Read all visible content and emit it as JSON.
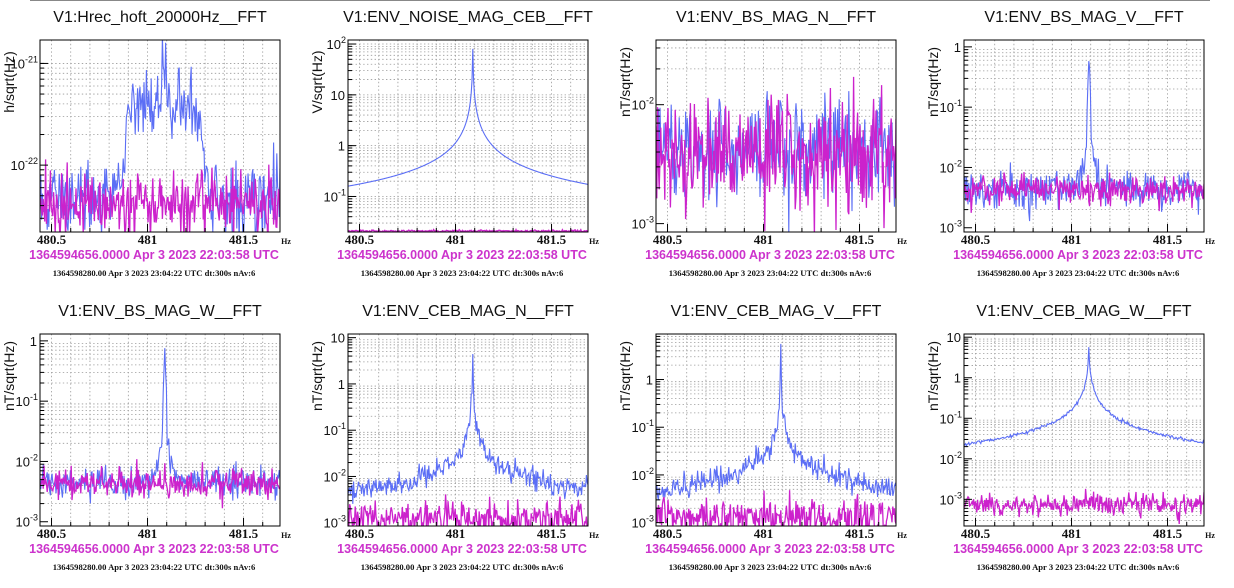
{
  "colors": {
    "reference": "#cc22cc",
    "current": "#5b6ef5",
    "ts1": "#cc33cc"
  },
  "chart_data": [
    {
      "type": "line",
      "title": "V1:Hrec_hoft_20000Hz__FFT",
      "ylabel": "h/sqrt(Hz)",
      "xunit": "Hz",
      "xlim": [
        480.44,
        481.69
      ],
      "xticks": [
        480.5,
        481,
        481.5
      ],
      "xtick_labels": [
        "480.5",
        "481",
        "481.5"
      ],
      "yscale": "log",
      "ylim": [
        2.2e-23,
        1.7e-21
      ],
      "yticks": [
        {
          "v": 1e-21,
          "m": "10",
          "e": "-21"
        },
        {
          "v": 1e-22,
          "m": "10",
          "e": "-22"
        }
      ],
      "ygrid": [
        2e-23,
        3e-23,
        4e-23,
        5e-23,
        6e-23,
        7e-23,
        8e-23,
        9e-23,
        2e-22,
        3e-22,
        4e-22,
        5e-22,
        6e-22,
        7e-22,
        8e-22,
        9e-22,
        1e-21
      ],
      "series": [
        {
          "role": "current",
          "base": 4.5e-23,
          "noise": 0.18,
          "peaks": [
            {
              "x": 481.09,
              "a": 7e-22,
              "w": 0.02
            },
            {
              "x": 481.0,
              "a": 3.2e-22,
              "w": 0.09
            },
            {
              "x": 481.18,
              "a": 3e-22,
              "w": 0.08
            },
            {
              "x": 480.93,
              "a": 1.6e-22,
              "w": 0.05
            },
            {
              "x": 481.25,
              "a": 1.4e-22,
              "w": 0.05
            }
          ]
        },
        {
          "role": "reference",
          "base": 4.3e-23,
          "noise": 0.15,
          "peaks": []
        }
      ],
      "timestamp_1": "1364594656.0000 Apr 3 2023 22:03:58 UTC",
      "timestamp_2": "1364598280.00 Apr 3 2023 23:04:22 UTC dt:300s nAv:6"
    },
    {
      "type": "line",
      "title": "V1:ENV_NOISE_MAG_CEB__FFT",
      "ylabel": "V/sqrt(Hz)",
      "xunit": "Hz",
      "xlim": [
        480.44,
        481.69
      ],
      "xticks": [
        480.5,
        481,
        481.5
      ],
      "xtick_labels": [
        "480.5",
        "481",
        "481.5"
      ],
      "yscale": "log",
      "ylim": [
        0.02,
        120
      ],
      "yticks": [
        {
          "v": 100,
          "m": "10",
          "e": "2"
        },
        {
          "v": 10,
          "m": "10",
          "e": ""
        },
        {
          "v": 1,
          "m": "1",
          "e": ""
        },
        {
          "v": 0.1,
          "m": "10",
          "e": "-1"
        }
      ],
      "ygrid": [
        0.03,
        0.04,
        0.05,
        0.06,
        0.07,
        0.08,
        0.09,
        0.1,
        0.2,
        0.3,
        0.4,
        0.5,
        0.6,
        0.7,
        0.8,
        0.9,
        1,
        2,
        3,
        4,
        5,
        6,
        7,
        8,
        9,
        10,
        20,
        30,
        40,
        50,
        60,
        70,
        80,
        90,
        100
      ],
      "series": [
        {
          "role": "current",
          "base": 0.0,
          "noise": 0.0,
          "lorentz": {
            "x": 481.09,
            "a": 80,
            "g": 0.0013
          }
        },
        {
          "role": "reference",
          "base": 0.021,
          "noise": 0.01,
          "peaks": []
        }
      ],
      "timestamp_1": "1364594656.0000 Apr 3 2023 22:03:58 UTC",
      "timestamp_2": "1364598280.00 Apr 3 2023 23:04:22 UTC dt:300s nAv:6"
    },
    {
      "type": "line",
      "title": "V1:ENV_BS_MAG_N__FFT",
      "ylabel": "nT/sqrt(Hz)",
      "xunit": "Hz",
      "xlim": [
        480.44,
        481.69
      ],
      "xticks": [
        480.5,
        481,
        481.5
      ],
      "xtick_labels": [
        "480.5",
        "481",
        "481.5"
      ],
      "yscale": "log",
      "ylim": [
        0.00085,
        0.035
      ],
      "yticks": [
        {
          "v": 0.01,
          "m": "10",
          "e": "-2"
        },
        {
          "v": 0.001,
          "m": "10",
          "e": "-3"
        }
      ],
      "ygrid": [
        0.002,
        0.003,
        0.004,
        0.005,
        0.006,
        0.007,
        0.008,
        0.009,
        0.02,
        0.03
      ],
      "series": [
        {
          "role": "current",
          "base": 0.0042,
          "noise": 0.22,
          "peaks": [
            {
              "x": 481.09,
              "a": 0.012,
              "w": 0.004
            }
          ]
        },
        {
          "role": "reference",
          "base": 0.004,
          "noise": 0.24,
          "peaks": []
        }
      ],
      "timestamp_1": "1364594656.0000 Apr 3 2023 22:03:58 UTC",
      "timestamp_2": "1364598280.00 Apr 3 2023 23:04:22 UTC dt:300s nAv:6"
    },
    {
      "type": "line",
      "title": "V1:ENV_BS_MAG_V__FFT",
      "ylabel": "nT/sqrt(Hz)",
      "xunit": "Hz",
      "xlim": [
        480.44,
        481.69
      ],
      "xticks": [
        480.5,
        481,
        481.5
      ],
      "xtick_labels": [
        "480.5",
        "481",
        "481.5"
      ],
      "yscale": "log",
      "ylim": [
        0.00085,
        1.3
      ],
      "yticks": [
        {
          "v": 1,
          "m": "1",
          "e": ""
        },
        {
          "v": 0.1,
          "m": "10",
          "e": "-1"
        },
        {
          "v": 0.01,
          "m": "10",
          "e": "-2"
        },
        {
          "v": 0.001,
          "m": "10",
          "e": "-3"
        }
      ],
      "ygrid": [
        0.002,
        0.003,
        0.004,
        0.005,
        0.006,
        0.007,
        0.008,
        0.009,
        0.02,
        0.03,
        0.04,
        0.05,
        0.06,
        0.07,
        0.08,
        0.09,
        0.2,
        0.3,
        0.4,
        0.5,
        0.6,
        0.7,
        0.8,
        0.9
      ],
      "series": [
        {
          "role": "current",
          "base": 0.0042,
          "noise": 0.16,
          "peaks": [
            {
              "x": 481.09,
              "a": 0.55,
              "w": 0.006
            },
            {
              "x": 481.09,
              "a": 0.02,
              "w": 0.03
            }
          ]
        },
        {
          "role": "reference",
          "base": 0.0042,
          "noise": 0.12,
          "peaks": []
        }
      ],
      "timestamp_1": "1364594656.0000 Apr 3 2023 22:03:58 UTC",
      "timestamp_2": "1364598280.00 Apr 3 2023 23:04:22 UTC dt:300s nAv:6"
    },
    {
      "type": "line",
      "title": "V1:ENV_BS_MAG_W__FFT",
      "ylabel": "nT/sqrt(Hz)",
      "xunit": "Hz",
      "xlim": [
        480.44,
        481.69
      ],
      "xticks": [
        480.5,
        481,
        481.5
      ],
      "xtick_labels": [
        "480.5",
        "481",
        "481.5"
      ],
      "yscale": "log",
      "ylim": [
        0.00085,
        1.3
      ],
      "yticks": [
        {
          "v": 1,
          "m": "1",
          "e": ""
        },
        {
          "v": 0.1,
          "m": "10",
          "e": "-1"
        },
        {
          "v": 0.01,
          "m": "10",
          "e": "-2"
        },
        {
          "v": 0.001,
          "m": "10",
          "e": "-3"
        }
      ],
      "ygrid": [
        0.002,
        0.003,
        0.004,
        0.005,
        0.006,
        0.007,
        0.008,
        0.009,
        0.02,
        0.03,
        0.04,
        0.05,
        0.06,
        0.07,
        0.08,
        0.09,
        0.2,
        0.3,
        0.4,
        0.5,
        0.6,
        0.7,
        0.8,
        0.9
      ],
      "series": [
        {
          "role": "current",
          "base": 0.0045,
          "noise": 0.14,
          "peaks": [
            {
              "x": 481.09,
              "a": 0.7,
              "w": 0.006
            },
            {
              "x": 481.09,
              "a": 0.02,
              "w": 0.03
            }
          ]
        },
        {
          "role": "reference",
          "base": 0.0043,
          "noise": 0.12,
          "peaks": []
        }
      ],
      "timestamp_1": "1364594656.0000 Apr 3 2023 22:03:58 UTC",
      "timestamp_2": "1364598280.00 Apr 3 2023 23:04:22 UTC dt:300s nAv:6"
    },
    {
      "type": "line",
      "title": "V1:ENV_CEB_MAG_N__FFT",
      "ylabel": "nT/sqrt(Hz)",
      "xunit": "Hz",
      "xlim": [
        480.44,
        481.69
      ],
      "xticks": [
        480.5,
        481,
        481.5
      ],
      "xtick_labels": [
        "480.5",
        "481",
        "481.5"
      ],
      "yscale": "log",
      "ylim": [
        0.00085,
        12
      ],
      "yticks": [
        {
          "v": 10,
          "m": "10",
          "e": ""
        },
        {
          "v": 1,
          "m": "1",
          "e": ""
        },
        {
          "v": 0.1,
          "m": "10",
          "e": "-1"
        },
        {
          "v": 0.01,
          "m": "10",
          "e": "-2"
        },
        {
          "v": 0.001,
          "m": "10",
          "e": "-3"
        }
      ],
      "ygrid": [
        0.002,
        0.003,
        0.004,
        0.005,
        0.006,
        0.007,
        0.008,
        0.009,
        0.02,
        0.03,
        0.04,
        0.05,
        0.06,
        0.07,
        0.08,
        0.09,
        0.2,
        0.3,
        0.4,
        0.5,
        0.6,
        0.7,
        0.8,
        0.9,
        2,
        3,
        4,
        5,
        6,
        7,
        8,
        9
      ],
      "series": [
        {
          "role": "current",
          "base": 0.0015,
          "noise": 0.12,
          "lorentz": {
            "x": 481.09,
            "a": 5,
            "g": 0.00045
          }
        },
        {
          "role": "reference",
          "base": 0.0012,
          "noise": 0.2,
          "peaks": []
        }
      ],
      "timestamp_1": "1364594656.0000 Apr 3 2023 22:03:58 UTC",
      "timestamp_2": "1364598280.00 Apr 3 2023 23:04:22 UTC dt:300s nAv:6"
    },
    {
      "type": "line",
      "title": "V1:ENV_CEB_MAG_V__FFT",
      "ylabel": "nT/sqrt(Hz)",
      "xunit": "Hz",
      "xlim": [
        480.44,
        481.69
      ],
      "xticks": [
        480.5,
        481,
        481.5
      ],
      "xtick_labels": [
        "480.5",
        "481",
        "481.5"
      ],
      "yscale": "log",
      "ylim": [
        0.00085,
        9
      ],
      "yticks": [
        {
          "v": 1,
          "m": "1",
          "e": ""
        },
        {
          "v": 0.1,
          "m": "10",
          "e": "-1"
        },
        {
          "v": 0.01,
          "m": "10",
          "e": "-2"
        },
        {
          "v": 0.001,
          "m": "10",
          "e": "-3"
        }
      ],
      "ygrid": [
        0.002,
        0.003,
        0.004,
        0.005,
        0.006,
        0.007,
        0.008,
        0.009,
        0.02,
        0.03,
        0.04,
        0.05,
        0.06,
        0.07,
        0.08,
        0.09,
        0.2,
        0.3,
        0.4,
        0.5,
        0.6,
        0.7,
        0.8,
        0.9,
        2,
        3,
        4,
        5,
        6,
        7,
        8
      ],
      "series": [
        {
          "role": "current",
          "base": 0.0014,
          "noise": 0.12,
          "lorentz": {
            "x": 481.09,
            "a": 4.5,
            "g": 0.0005
          }
        },
        {
          "role": "reference",
          "base": 0.0013,
          "noise": 0.2,
          "peaks": []
        }
      ],
      "timestamp_1": "1364594656.0000 Apr 3 2023 22:03:58 UTC",
      "timestamp_2": "1364598280.00 Apr 3 2023 23:04:22 UTC dt:300s nAv:6"
    },
    {
      "type": "line",
      "title": "V1:ENV_CEB_MAG_W__FFT",
      "ylabel": "nT/sqrt(Hz)",
      "xunit": "Hz",
      "xlim": [
        480.44,
        481.69
      ],
      "xticks": [
        480.5,
        481,
        481.5
      ],
      "xtick_labels": [
        "480.5",
        "481",
        "481.5"
      ],
      "yscale": "log",
      "ylim": [
        0.00022,
        12
      ],
      "yticks": [
        {
          "v": 10,
          "m": "10",
          "e": ""
        },
        {
          "v": 1,
          "m": "1",
          "e": ""
        },
        {
          "v": 0.1,
          "m": "10",
          "e": "-1"
        },
        {
          "v": 0.01,
          "m": "10",
          "e": "-2"
        },
        {
          "v": 0.001,
          "m": "10",
          "e": "-3"
        }
      ],
      "ygrid": [
        0.0003,
        0.0004,
        0.0005,
        0.0006,
        0.0007,
        0.0008,
        0.0009,
        0.002,
        0.003,
        0.004,
        0.005,
        0.006,
        0.007,
        0.008,
        0.009,
        0.02,
        0.03,
        0.04,
        0.05,
        0.06,
        0.07,
        0.08,
        0.09,
        0.2,
        0.3,
        0.4,
        0.5,
        0.6,
        0.7,
        0.8,
        0.9,
        2,
        3,
        4,
        5,
        6,
        7,
        8,
        9
      ],
      "series": [
        {
          "role": "current",
          "base": 0.0,
          "noise": 0.02,
          "lorentz": {
            "x": 481.09,
            "a": 6,
            "g": 0.0025
          }
        },
        {
          "role": "reference",
          "base": 0.00075,
          "noise": 0.14,
          "peaks": []
        }
      ],
      "timestamp_1": "1364594656.0000 Apr 3 2023 22:03:58 UTC",
      "timestamp_2": "1364598280.00 Apr 3 2023 23:04:22 UTC dt:300s nAv:6"
    }
  ]
}
